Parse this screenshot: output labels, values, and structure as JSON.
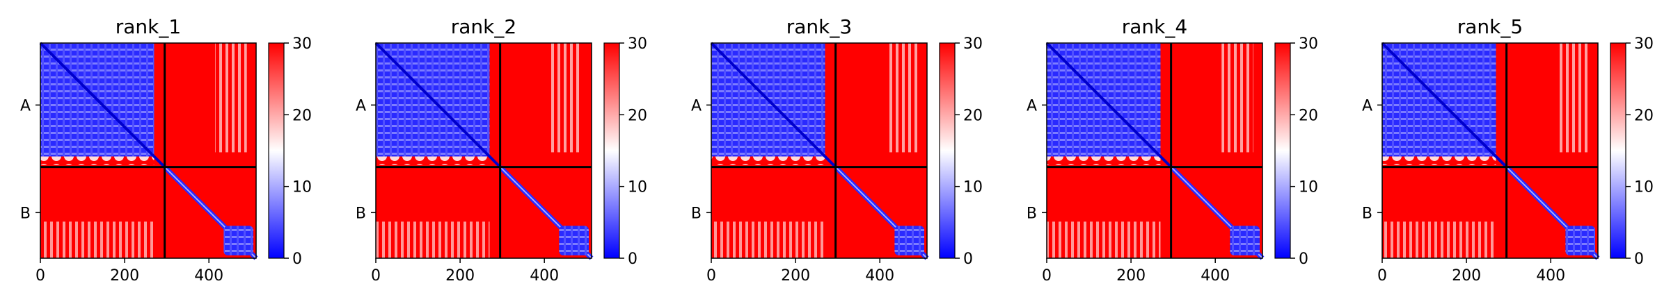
{
  "chart_data": [
    {
      "type": "heatmap",
      "title": "rank_1",
      "x_ticks": [
        0,
        200,
        400
      ],
      "x_tick_labels": [
        "0",
        "200",
        "400"
      ],
      "xlim": [
        0,
        512
      ],
      "y_tick_labels": [
        "A",
        "B"
      ],
      "chain_boundary": 295,
      "chains": [
        {
          "name": "A",
          "start": 0,
          "end": 295
        },
        {
          "name": "B",
          "start": 295,
          "end": 512
        }
      ],
      "colorbar": {
        "min": 0,
        "max": 30,
        "ticks": [
          0,
          10,
          20,
          30
        ],
        "tick_labels": [
          "0",
          "10",
          "20",
          "30"
        ],
        "colormap": [
          "#0000ff",
          "#ffffff",
          "#ff0000"
        ]
      },
      "matrix_summary": {
        "A_A": "low error (blue), diagonal near 0",
        "B_B_domain": {
          "start": 435,
          "end": 512,
          "level": "low (blue)"
        },
        "off_diagonal": "high error (red, ~30)",
        "light_band_cols": [
          415,
          490
        ]
      }
    },
    {
      "type": "heatmap",
      "title": "rank_2",
      "x_ticks": [
        0,
        200,
        400
      ],
      "x_tick_labels": [
        "0",
        "200",
        "400"
      ],
      "xlim": [
        0,
        512
      ],
      "y_tick_labels": [
        "A",
        "B"
      ],
      "chain_boundary": 295,
      "chains": [
        {
          "name": "A",
          "start": 0,
          "end": 295
        },
        {
          "name": "B",
          "start": 295,
          "end": 512
        }
      ],
      "colorbar": {
        "min": 0,
        "max": 30,
        "ticks": [
          0,
          10,
          20,
          30
        ],
        "tick_labels": [
          "0",
          "10",
          "20",
          "30"
        ],
        "colormap": [
          "#0000ff",
          "#ffffff",
          "#ff0000"
        ]
      },
      "matrix_summary": {
        "A_A": "low error (blue), diagonal near 0",
        "B_B_domain": {
          "start": 435,
          "end": 512,
          "level": "low (blue)"
        },
        "off_diagonal": "high error (red, ~30)",
        "light_band_cols": [
          415,
          490
        ]
      }
    },
    {
      "type": "heatmap",
      "title": "rank_3",
      "x_ticks": [
        0,
        200,
        400
      ],
      "x_tick_labels": [
        "0",
        "200",
        "400"
      ],
      "xlim": [
        0,
        512
      ],
      "y_tick_labels": [
        "A",
        "B"
      ],
      "chain_boundary": 295,
      "chains": [
        {
          "name": "A",
          "start": 0,
          "end": 295
        },
        {
          "name": "B",
          "start": 295,
          "end": 512
        }
      ],
      "colorbar": {
        "min": 0,
        "max": 30,
        "ticks": [
          0,
          10,
          20,
          30
        ],
        "tick_labels": [
          "0",
          "10",
          "20",
          "30"
        ],
        "colormap": [
          "#0000ff",
          "#ffffff",
          "#ff0000"
        ]
      },
      "matrix_summary": {
        "A_A": "low error (blue), diagonal near 0",
        "B_B_domain": {
          "start": 435,
          "end": 512,
          "level": "low (blue)"
        },
        "off_diagonal": "high error (red, ~30)",
        "light_band_cols": [
          415,
          490
        ]
      }
    },
    {
      "type": "heatmap",
      "title": "rank_4",
      "x_ticks": [
        0,
        200,
        400
      ],
      "x_tick_labels": [
        "0",
        "200",
        "400"
      ],
      "xlim": [
        0,
        512
      ],
      "y_tick_labels": [
        "A",
        "B"
      ],
      "chain_boundary": 295,
      "chains": [
        {
          "name": "A",
          "start": 0,
          "end": 295
        },
        {
          "name": "B",
          "start": 295,
          "end": 512
        }
      ],
      "colorbar": {
        "min": 0,
        "max": 30,
        "ticks": [
          0,
          10,
          20,
          30
        ],
        "tick_labels": [
          "0",
          "10",
          "20",
          "30"
        ],
        "colormap": [
          "#0000ff",
          "#ffffff",
          "#ff0000"
        ]
      },
      "matrix_summary": {
        "A_A": "low error (blue), diagonal near 0",
        "B_B_domain": {
          "start": 435,
          "end": 512,
          "level": "low (blue)"
        },
        "off_diagonal": "high error (red, ~30)",
        "light_band_cols": [
          415,
          490
        ]
      }
    },
    {
      "type": "heatmap",
      "title": "rank_5",
      "x_ticks": [
        0,
        200,
        400
      ],
      "x_tick_labels": [
        "0",
        "200",
        "400"
      ],
      "xlim": [
        0,
        512
      ],
      "y_tick_labels": [
        "A",
        "B"
      ],
      "chain_boundary": 295,
      "chains": [
        {
          "name": "A",
          "start": 0,
          "end": 295
        },
        {
          "name": "B",
          "start": 295,
          "end": 512
        }
      ],
      "colorbar": {
        "min": 0,
        "max": 30,
        "ticks": [
          0,
          10,
          20,
          30
        ],
        "tick_labels": [
          "0",
          "10",
          "20",
          "30"
        ],
        "colormap": [
          "#0000ff",
          "#ffffff",
          "#ff0000"
        ]
      },
      "matrix_summary": {
        "A_A": "low error (blue), diagonal near 0",
        "B_B_domain": {
          "start": 435,
          "end": 512,
          "level": "low (blue)"
        },
        "off_diagonal": "high error (red, ~30)",
        "light_band_cols": [
          415,
          490
        ]
      }
    }
  ]
}
